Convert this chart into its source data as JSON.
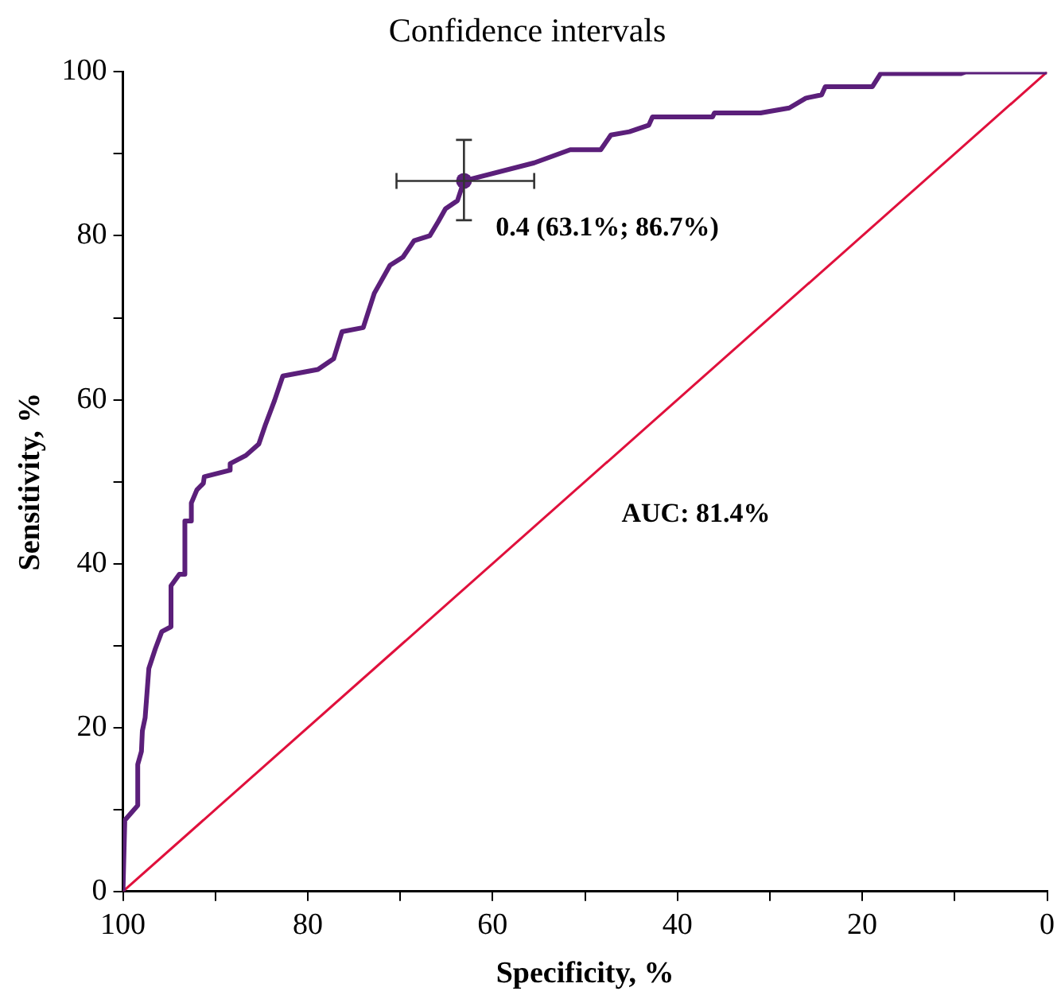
{
  "chart_data": {
    "type": "line",
    "title": "Confidence intervals",
    "xlabel": "Specificity, %",
    "ylabel": "Sensitivity, %",
    "xlim": [
      100,
      0
    ],
    "ylim": [
      0,
      100
    ],
    "xticks": [
      100,
      {
        "value": 90,
        "label": null
      },
      80,
      {
        "value": 70,
        "label": null
      },
      60,
      {
        "value": 50,
        "label": null
      },
      40,
      {
        "value": 30,
        "label": null
      },
      20,
      {
        "value": 10,
        "label": null
      },
      0
    ],
    "yticks": [
      0,
      {
        "value": 10,
        "label": null
      },
      20,
      {
        "value": 30,
        "label": null
      },
      40,
      {
        "value": 50,
        "label": null
      },
      60,
      {
        "value": 70,
        "label": null
      },
      80,
      {
        "value": 90,
        "label": null
      },
      100
    ],
    "grid": false,
    "legend": false,
    "line_style": "solid",
    "series": [
      {
        "type": "line",
        "color": "#5b1f7a",
        "marker": "none",
        "x": [
          100,
          99.8,
          98.4,
          98.4,
          98.0,
          97.9,
          97.6,
          97.2,
          96.5,
          95.8,
          94.8,
          94.8,
          93.9,
          93.3,
          93.3,
          92.6,
          92.6,
          92.0,
          91.3,
          91.2,
          88.4,
          88.4,
          86.7,
          85.3,
          84.6,
          83.6,
          82.7,
          78.9,
          77.2,
          76.3,
          74.0,
          72.8,
          71.1,
          69.7,
          68.5,
          66.8,
          65.9,
          65.1,
          63.8,
          63.1,
          55.5,
          51.6,
          48.3,
          47.2,
          45.2,
          43.1,
          42.7,
          36.2,
          36.0,
          31.0,
          27.9,
          26.1,
          24.4,
          24.0,
          18.9,
          18.0,
          9.3,
          8.8,
          0
        ],
        "values": [
          0,
          8.7,
          10.5,
          15.5,
          17.1,
          19.6,
          21.2,
          27.2,
          29.6,
          31.7,
          32.3,
          37.3,
          38.7,
          38.7,
          45.2,
          45.2,
          47.4,
          49.0,
          49.8,
          50.6,
          51.4,
          52.2,
          53.2,
          54.6,
          56.9,
          59.9,
          62.9,
          63.7,
          65.0,
          68.3,
          68.8,
          73.0,
          76.4,
          77.4,
          79.4,
          80.0,
          81.7,
          83.3,
          84.3,
          86.7,
          88.9,
          90.5,
          90.5,
          92.3,
          92.7,
          93.5,
          94.5,
          94.5,
          95.0,
          95.0,
          95.6,
          96.8,
          97.2,
          98.2,
          98.2,
          99.8,
          99.8,
          100,
          100
        ]
      },
      {
        "type": "line",
        "color": "#e0103c",
        "marker": "none",
        "x": [
          100,
          0
        ],
        "values": [
          0,
          100
        ]
      },
      {
        "type": "scatter",
        "color": "#5b1f7a",
        "marker": "circle",
        "x": [
          63.1
        ],
        "values": [
          86.7
        ],
        "xerrors": [
          [
            55.5,
            70.4
          ]
        ],
        "errors": [
          [
            81.9,
            91.7
          ]
        ]
      }
    ],
    "annotations": [
      {
        "text": "0.4 (63.1%; 86.7%)",
        "x": 63.1,
        "y": 86.7
      },
      "AUC: 81.4%"
    ]
  }
}
